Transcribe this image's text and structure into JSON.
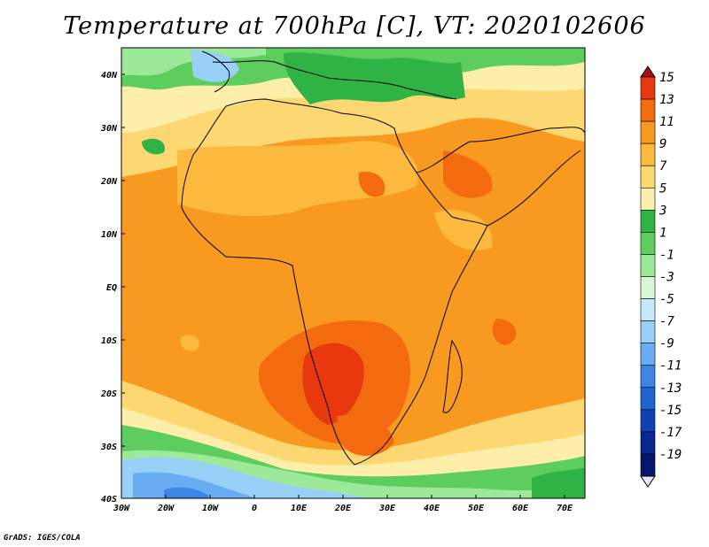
{
  "title": "Temperature at 700hPa [C], VT: 2020102606",
  "credit": "GrADS: IGES/COLA",
  "map": {
    "lat_labels": [
      "40N",
      "30N",
      "20N",
      "10N",
      "EQ",
      "10S",
      "20S",
      "30S",
      "40S"
    ],
    "lon_labels": [
      "30W",
      "20W",
      "10W",
      "0",
      "10E",
      "20E",
      "30E",
      "40E",
      "50E",
      "60E",
      "70E"
    ]
  },
  "colorbar": {
    "labels": [
      "15",
      "13",
      "11",
      "9",
      "7",
      "5",
      "3",
      "1",
      "-1",
      "-3",
      "-5",
      "-7",
      "-9",
      "-11",
      "-13",
      "-15",
      "-17",
      "-19"
    ],
    "colors": [
      "#a50f15",
      "#e8380d",
      "#f46a0f",
      "#f89a20",
      "#fbb93d",
      "#fdd771",
      "#fdeeaa",
      "#2fb344",
      "#5dcd5d",
      "#9de99a",
      "#d6f8d6",
      "#c6e8fa",
      "#98d0f8",
      "#68acf2",
      "#3d85e2",
      "#1f64cf",
      "#0f43b4",
      "#08278f",
      "#041670",
      "#e8e4ff"
    ]
  }
}
